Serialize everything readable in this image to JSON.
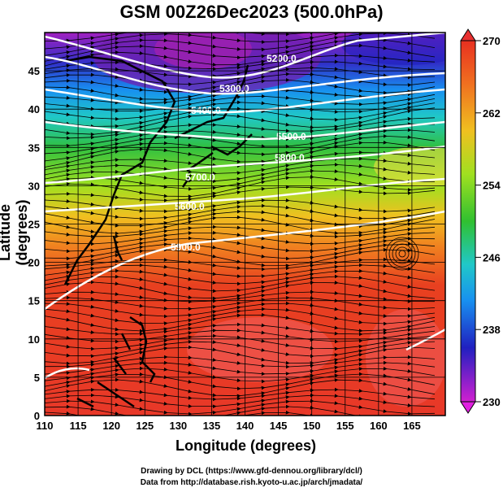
{
  "title": "GSM 00Z26Dec2023 (500.0hPa)",
  "axes": {
    "xlabel": "Longitude (degrees)",
    "ylabel": "Latitude  (degrees)",
    "xticks": [
      "110",
      "115",
      "120",
      "125",
      "130",
      "135",
      "140",
      "145",
      "150",
      "155",
      "160",
      "165"
    ],
    "yticks": [
      "0",
      "5",
      "10",
      "15",
      "20",
      "25",
      "30",
      "35",
      "40",
      "45"
    ],
    "xlim": [
      110,
      170
    ],
    "ylim": [
      0,
      50
    ]
  },
  "colorbar": {
    "ticks": [
      "270",
      "262",
      "254",
      "246",
      "238",
      "230"
    ],
    "range": [
      230,
      270
    ],
    "colors": [
      "#d020d0",
      "#2020c0",
      "#1890f0",
      "#20d0c0",
      "#30c030",
      "#b0e020",
      "#f0d020",
      "#f08020",
      "#e83010",
      "#e84040"
    ]
  },
  "contours": [
    {
      "label": "5200.0"
    },
    {
      "label": "5300.0"
    },
    {
      "label": "5400.0"
    },
    {
      "label": "5500.0"
    },
    {
      "label": "5600.0"
    },
    {
      "label": "5700.0"
    },
    {
      "label": "5800.0"
    },
    {
      "label": "5900.0"
    }
  ],
  "credits": {
    "line1": "Drawing by DCL (https://www.gfd-dennou.org/library/dcl/)",
    "line2": "Data from http://database.rish.kyoto-u.ac.jp/arch/jmadata/"
  }
}
